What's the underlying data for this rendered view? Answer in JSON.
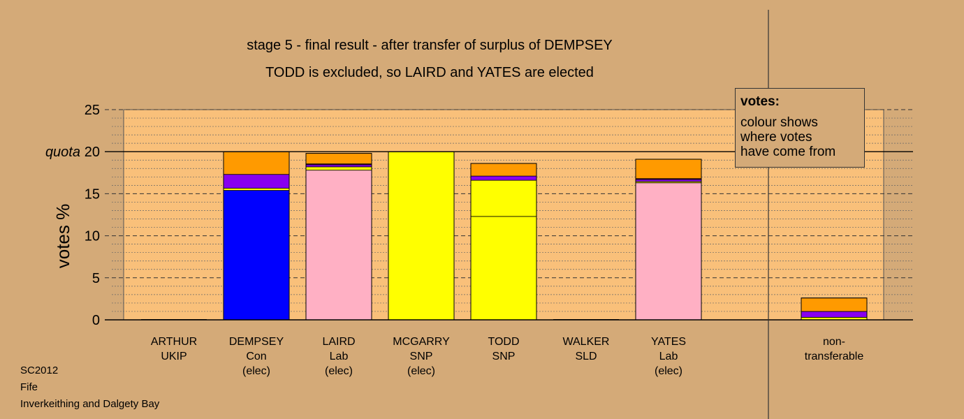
{
  "title": {
    "line1": "stage 5 - final result - after transfer of surplus of DEMPSEY",
    "line2": "TODD is excluded, so LAIRD and YATES are elected"
  },
  "legend": {
    "title": "votes:",
    "line1": "colour shows",
    "line2": "where votes",
    "line3": "have come from"
  },
  "footer": {
    "line1": "SC2012",
    "line2": "Fife",
    "line3": "Inverkeithing and Dalgety Bay"
  },
  "colors": {
    "background": "#d4aa78",
    "plot_area": "#f9c07a",
    "Con": "#0000ff",
    "Lab": "#ffb0c4",
    "SNP": "#ffff00",
    "SLD": "#ff9a00",
    "other": "#8800ee",
    "UKIP": "#6a0055"
  },
  "chart_data": {
    "type": "bar",
    "stacked": true,
    "ylabel": "votes %",
    "ylim": [
      0,
      25
    ],
    "yticks": [
      0,
      5,
      10,
      15,
      20,
      25
    ],
    "quota": 20,
    "quota_label": "quota",
    "grid": true,
    "categories": [
      {
        "lines": [
          "ARTHUR",
          "UKIP"
        ]
      },
      {
        "lines": [
          "DEMPSEY",
          "Con",
          "(elec)"
        ]
      },
      {
        "lines": [
          "LAIRD",
          "Lab",
          "(elec)"
        ]
      },
      {
        "lines": [
          "MCGARRY",
          "SNP",
          "(elec)"
        ]
      },
      {
        "lines": [
          "TODD",
          "SNP"
        ]
      },
      {
        "lines": [
          "WALKER",
          "SLD"
        ]
      },
      {
        "lines": [
          "YATES",
          "Lab",
          "(elec)"
        ]
      },
      {
        "lines": [
          "non-",
          "transferable"
        ]
      }
    ],
    "bars": [
      {
        "segments": []
      },
      {
        "segments": [
          {
            "color": "#0000ff",
            "value": 15.4
          },
          {
            "color": "#ffff00",
            "value": 0.25
          },
          {
            "color": "#8800ee",
            "value": 1.65
          },
          {
            "color": "#ff9a00",
            "value": 2.7
          }
        ]
      },
      {
        "segments": [
          {
            "color": "#ffb0c4",
            "value": 17.8
          },
          {
            "color": "#ffff00",
            "value": 0.4
          },
          {
            "color": "#8800ee",
            "value": 0.25
          },
          {
            "color": "#6a0055",
            "value": 0.1
          },
          {
            "color": "#ff9a00",
            "value": 1.25
          }
        ]
      },
      {
        "segments": [
          {
            "color": "#ffff00",
            "value": 20.0
          }
        ]
      },
      {
        "segments": [
          {
            "color": "#ffff00",
            "value": 12.3
          },
          {
            "color": "#ffff00",
            "value": 4.3
          },
          {
            "color": "#8800ee",
            "value": 0.5
          },
          {
            "color": "#ff9a00",
            "value": 1.5
          }
        ]
      },
      {
        "segments": []
      },
      {
        "segments": [
          {
            "color": "#ffb0c4",
            "value": 16.3
          },
          {
            "color": "#ffff00",
            "value": 0.15
          },
          {
            "color": "#8800ee",
            "value": 0.25
          },
          {
            "color": "#6a0055",
            "value": 0.1
          },
          {
            "color": "#ff9a00",
            "value": 2.3
          }
        ]
      },
      {
        "segments": [
          {
            "color": "#ffff00",
            "value": 0.3
          },
          {
            "color": "#8800ee",
            "value": 0.7
          },
          {
            "color": "#ff9a00",
            "value": 1.6
          }
        ]
      }
    ]
  }
}
